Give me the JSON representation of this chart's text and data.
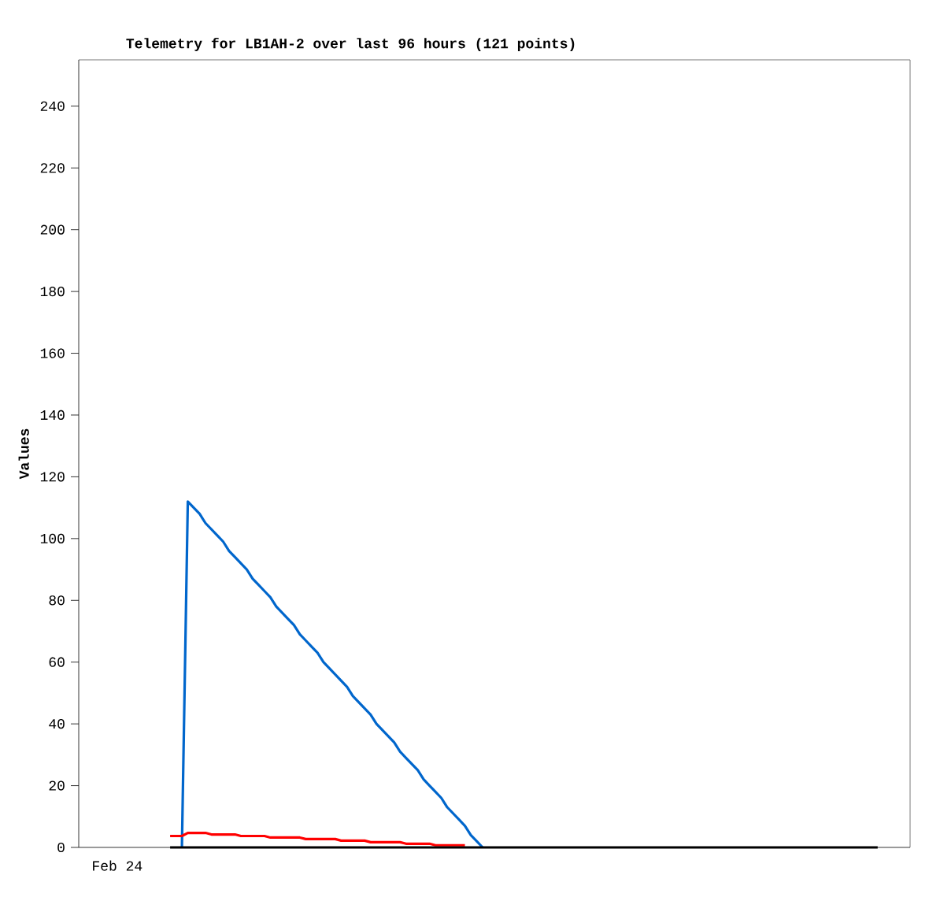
{
  "chart_data": {
    "type": "line",
    "title": "Telemetry for LB1AH-2 over last 96 hours (121 points)",
    "ylabel": "Values",
    "annotations": [
      "Feb 24"
    ],
    "categories": [
      null,
      null,
      null,
      null,
      null,
      null,
      null,
      null,
      null,
      null,
      null,
      null,
      null,
      null,
      null,
      null,
      null,
      null,
      null,
      null,
      null,
      null,
      null,
      null,
      null,
      null,
      null,
      null,
      null,
      null,
      null,
      null,
      null,
      null,
      null,
      null,
      null,
      null,
      null,
      null,
      null,
      null,
      null,
      null,
      null,
      null,
      null,
      null,
      null,
      null,
      null,
      null,
      null,
      null,
      null,
      null,
      null,
      null,
      null,
      null,
      null,
      null,
      null,
      null,
      null,
      null,
      null,
      null,
      null,
      null,
      null,
      null,
      null,
      null,
      null,
      null,
      null,
      null,
      null,
      null,
      null,
      null,
      null,
      null,
      null,
      null,
      null,
      null,
      null,
      null,
      null,
      null,
      null,
      null,
      null,
      null,
      null,
      null,
      null,
      null,
      null,
      null,
      null,
      null,
      null,
      null,
      null,
      null,
      null,
      null,
      null,
      null,
      null,
      null,
      null,
      null,
      null,
      null,
      null,
      null,
      null,
      null,
      null,
      null,
      null,
      null,
      null,
      null,
      null,
      null,
      null,
      null,
      null,
      null,
      null,
      null,
      null,
      null,
      null,
      null,
      null
    ],
    "series": [
      {
        "color": "#000000",
        "values": [
          null,
          null,
          null,
          null,
          null,
          null,
          null,
          null,
          null,
          null,
          null,
          null,
          null,
          null,
          null,
          0,
          0,
          0,
          0,
          0,
          0,
          0,
          0,
          0,
          0,
          0,
          0,
          0,
          0,
          0,
          0,
          0,
          0,
          0,
          0,
          0,
          0,
          0,
          0,
          0,
          0,
          0,
          0,
          0,
          0,
          0,
          0,
          0,
          0,
          0,
          0,
          0,
          0,
          0,
          0,
          0,
          0,
          0,
          0,
          0,
          0,
          0,
          0,
          0,
          0,
          0,
          0,
          0,
          0,
          0,
          0,
          0,
          0,
          0,
          0,
          0,
          0,
          0,
          0,
          0,
          0,
          0,
          0,
          0,
          0,
          0,
          0,
          0,
          0,
          0,
          0,
          0,
          0,
          0,
          0,
          0,
          0,
          0,
          0,
          0,
          0,
          0,
          0,
          0,
          0,
          0,
          0,
          0,
          0,
          0,
          0,
          0,
          0,
          0,
          0,
          0,
          0,
          0,
          0,
          0,
          0,
          0,
          0,
          0,
          0,
          0,
          0,
          0,
          0,
          0,
          0,
          0,
          0,
          0,
          0,
          0,
          null,
          null,
          null,
          null,
          null
        ]
      },
      {
        "color": "#0066cc",
        "values": [
          null,
          null,
          null,
          null,
          null,
          null,
          null,
          null,
          null,
          null,
          null,
          null,
          null,
          null,
          null,
          null,
          null,
          0,
          112,
          110,
          108,
          105,
          103,
          101,
          99,
          96,
          94,
          92,
          90,
          87,
          85,
          83,
          81,
          78,
          76,
          74,
          72,
          69,
          67,
          65,
          63,
          60,
          58,
          56,
          54,
          52,
          49,
          47,
          45,
          43,
          40,
          38,
          36,
          34,
          31,
          29,
          27,
          25,
          22,
          20,
          18,
          16,
          13,
          11,
          9,
          7,
          4,
          2,
          0,
          null,
          null,
          null,
          null,
          null,
          null,
          null,
          null,
          null,
          null,
          null,
          null,
          null,
          null,
          null,
          null,
          null,
          null,
          null,
          null,
          null,
          null,
          null,
          null,
          null,
          null,
          null,
          null,
          null,
          null,
          null,
          null,
          null,
          null,
          null,
          null,
          null,
          null,
          null,
          null,
          null,
          null,
          null,
          null,
          null,
          null,
          null,
          null,
          null,
          null,
          null,
          null,
          null,
          null,
          null,
          null,
          null,
          null,
          null,
          null,
          null,
          null,
          null,
          null,
          null,
          null,
          null,
          null,
          null,
          null,
          null,
          null
        ]
      },
      {
        "color": "#ff0000",
        "values": [
          null,
          null,
          null,
          null,
          null,
          null,
          null,
          null,
          null,
          null,
          null,
          null,
          null,
          null,
          null,
          3.7,
          3.7,
          3.7,
          4.7,
          4.7,
          4.7,
          4.7,
          4.2,
          4.2,
          4.2,
          4.2,
          4.2,
          3.7,
          3.7,
          3.7,
          3.7,
          3.7,
          3.2,
          3.2,
          3.2,
          3.2,
          3.2,
          3.2,
          2.7,
          2.7,
          2.7,
          2.7,
          2.7,
          2.7,
          2.2,
          2.2,
          2.2,
          2.2,
          2.2,
          1.7,
          1.7,
          1.7,
          1.7,
          1.7,
          1.7,
          1.2,
          1.2,
          1.2,
          1.2,
          1.2,
          0.7,
          0.7,
          0.7,
          0.7,
          0.7,
          0.7,
          null,
          null,
          null,
          null,
          null,
          null,
          null,
          null,
          null,
          null,
          null,
          null,
          null,
          null,
          null,
          null,
          null,
          null,
          null,
          null,
          null,
          null,
          null,
          null,
          null,
          null,
          null,
          null,
          null,
          null,
          null,
          null,
          null,
          null,
          null,
          null,
          null,
          null,
          null,
          null,
          null,
          null,
          null,
          null,
          null,
          null,
          null,
          null,
          null,
          null,
          null,
          null,
          null,
          null,
          null,
          null,
          null,
          null,
          null,
          null,
          null,
          null,
          null,
          null,
          null,
          null,
          null,
          null,
          null,
          null,
          null,
          null,
          null,
          null,
          null
        ]
      }
    ],
    "ylim": [
      0,
      255
    ],
    "yticks": [
      0,
      20,
      40,
      60,
      80,
      100,
      120,
      140,
      160,
      180,
      200,
      220,
      240
    ],
    "grid": false,
    "marker": "none"
  }
}
